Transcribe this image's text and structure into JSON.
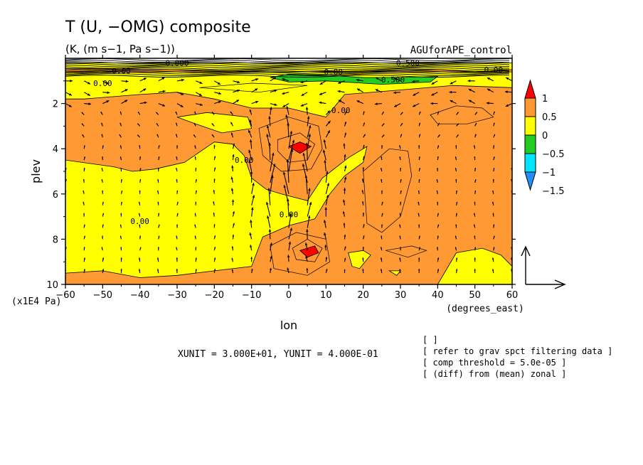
{
  "figure": {
    "title": "T (U, −OMG) composite",
    "units": "(K, (m s−1, Pa s−1))",
    "dataset": "AGUforAPE_control",
    "xunit_note": "XUNIT = 3.000E+01, YUNIT = 4.000E-01",
    "notes": [
      "[  ]",
      "[ refer to grav spct filtering data ]",
      "[ comp threshold = 5.0e-05 ]",
      "[ (diff) from (mean) zonal ]"
    ]
  },
  "chart_data": {
    "type": "heatmap",
    "title": "T (U, −OMG) composite",
    "subtitle": "(K, (m s−1, Pa s−1))",
    "xlabel": "lon",
    "xunits": "(degrees_east)",
    "ylabel": "plev",
    "yunits": "(x1E4 Pa)",
    "xlim": [
      -60,
      60
    ],
    "ylim": [
      10,
      0
    ],
    "xticks": [
      -60,
      -50,
      -40,
      -30,
      -20,
      -10,
      0,
      10,
      20,
      30,
      40,
      50,
      60
    ],
    "xtick_labels": [
      "−60",
      "−50",
      "−40",
      "−30",
      "−20",
      "−10",
      "0",
      "10",
      "20",
      "30",
      "40",
      "50",
      "60"
    ],
    "yticks": [
      2,
      4,
      6,
      8,
      10
    ],
    "ytick_labels": [
      "2",
      "4",
      "6",
      "8",
      "10"
    ],
    "colorbar": {
      "levels": [
        -1.5,
        -1,
        -0.5,
        0,
        0.5,
        1
      ],
      "labels": [
        "−1.5",
        "−1",
        "−0.5",
        "0",
        "0.5",
        "1"
      ],
      "colors": [
        "#1e90ff",
        "#00e5ff",
        "#22cc22",
        "#ffff00",
        "#ff9933",
        "#ff0000"
      ]
    },
    "contour_labels": [
      {
        "text": "0.00",
        "lon": -45,
        "plev": 0.55
      },
      {
        "text": "0.000",
        "lon": -30,
        "plev": 0.2
      },
      {
        "text": "0.00",
        "lon": -50,
        "plev": 1.1
      },
      {
        "text": "0.500",
        "lon": 32,
        "plev": 0.2
      },
      {
        "text": "0.00",
        "lon": 55,
        "plev": 0.5
      },
      {
        "text": "0.500",
        "lon": 28,
        "plev": 0.95
      },
      {
        "text": "0.00",
        "lon": 12,
        "plev": 0.6
      },
      {
        "text": "0.00",
        "lon": 14,
        "plev": 2.3
      },
      {
        "text": "0.00",
        "lon": -12,
        "plev": 4.5
      },
      {
        "text": "0.00",
        "lon": 0,
        "plev": 6.9
      },
      {
        "text": "0.00",
        "lon": -40,
        "plev": 7.2
      }
    ],
    "regions": [
      {
        "value": 0.25,
        "points": [
          [
            -60,
            0.2
          ],
          [
            60,
            0.2
          ],
          [
            60,
            10
          ],
          [
            -60,
            10
          ]
        ]
      },
      {
        "value": -0.25,
        "points": [
          [
            -60,
            0.6
          ],
          [
            60,
            0.6
          ],
          [
            60,
            1.3
          ],
          [
            44,
            1.2
          ],
          [
            30,
            1.4
          ],
          [
            15,
            1.6
          ],
          [
            12,
            2.2
          ],
          [
            10,
            2.6
          ],
          [
            0,
            2.2
          ],
          [
            -10,
            2.2
          ],
          [
            -20,
            1.8
          ],
          [
            -30,
            1.5
          ],
          [
            -40,
            1.6
          ],
          [
            -55,
            1.8
          ],
          [
            -60,
            1.8
          ]
        ]
      },
      {
        "value": -0.25,
        "points": [
          [
            -60,
            4.5
          ],
          [
            -47,
            4.8
          ],
          [
            -42,
            5.0
          ],
          [
            -36,
            4.9
          ],
          [
            -28,
            4.6
          ],
          [
            -20,
            3.7
          ],
          [
            -15,
            3.8
          ],
          [
            -12,
            4.3
          ],
          [
            -10,
            5.3
          ],
          [
            -6,
            5.8
          ],
          [
            -2,
            6.0
          ],
          [
            5,
            6.3
          ],
          [
            9,
            5.3
          ],
          [
            16,
            4.4
          ],
          [
            21,
            3.9
          ],
          [
            20,
            4.6
          ],
          [
            15,
            5.2
          ],
          [
            11,
            6.0
          ],
          [
            7,
            7.1
          ],
          [
            0,
            7.4
          ],
          [
            -7,
            7.9
          ],
          [
            -10,
            9.2
          ],
          [
            -20,
            9.4
          ],
          [
            -30,
            9.6
          ],
          [
            -40,
            9.7
          ],
          [
            -50,
            9.4
          ],
          [
            -60,
            9.5
          ]
        ]
      },
      {
        "value": -0.25,
        "points": [
          [
            -10,
            3.1
          ],
          [
            -11,
            2.6
          ],
          [
            -22,
            2.4
          ],
          [
            -30,
            2.6
          ],
          [
            -25,
            2.9
          ],
          [
            -18,
            3.3
          ]
        ]
      },
      {
        "value": -0.25,
        "points": [
          [
            40,
            10
          ],
          [
            45,
            8.6
          ],
          [
            52,
            8.4
          ],
          [
            57,
            8.7
          ],
          [
            60,
            9.2
          ],
          [
            60,
            10
          ]
        ]
      },
      {
        "value": -0.25,
        "points": [
          [
            16,
            8.6
          ],
          [
            20,
            8.5
          ],
          [
            22,
            8.7
          ],
          [
            19,
            9.3
          ],
          [
            17,
            9.2
          ]
        ]
      },
      {
        "value": -0.25,
        "points": [
          [
            27,
            9.4
          ],
          [
            30,
            9.4
          ],
          [
            29,
            9.6
          ]
        ]
      },
      {
        "value": 0.75,
        "points": [
          [
            0,
            3.9
          ],
          [
            3,
            3.7
          ],
          [
            6,
            3.9
          ],
          [
            3,
            4.2
          ]
        ]
      },
      {
        "value": 0.75,
        "points": [
          [
            3,
            8.5
          ],
          [
            7,
            8.3
          ],
          [
            8,
            8.6
          ],
          [
            5,
            8.8
          ]
        ]
      },
      {
        "value": -0.75,
        "points": [
          [
            -5,
            0.85
          ],
          [
            0,
            0.7
          ],
          [
            10,
            0.75
          ],
          [
            20,
            0.85
          ],
          [
            30,
            0.85
          ],
          [
            40,
            0.8
          ],
          [
            38,
            1.05
          ],
          [
            25,
            1.15
          ],
          [
            10,
            1.0
          ],
          [
            0,
            1.05
          ]
        ]
      },
      {
        "value": -0.25,
        "points": [
          [
            60,
            0.2
          ],
          [
            60,
            0.5
          ],
          [
            50,
            0.6
          ],
          [
            40,
            0.5
          ],
          [
            30,
            0.55
          ],
          [
            -5,
            0.6
          ],
          [
            -30,
            0.5
          ],
          [
            -60,
            0.45
          ],
          [
            -60,
            0.2
          ]
        ]
      }
    ],
    "wind_vectors": {
      "lon": [
        -60,
        -55,
        -50,
        -45,
        -40,
        -35,
        -30,
        -25,
        -20,
        -15,
        -10,
        -5,
        0,
        5,
        10,
        15,
        20,
        25,
        30,
        35,
        40,
        45,
        50,
        55,
        60
      ],
      "plev": [
        1,
        1.5,
        2,
        2.5,
        3,
        3.5,
        4,
        4.5,
        5,
        5.5,
        6,
        6.5,
        7,
        7.5,
        8,
        8.5,
        9,
        9.5
      ],
      "reference": {
        "u": 30,
        "omg_neg": 0.4
      }
    }
  }
}
